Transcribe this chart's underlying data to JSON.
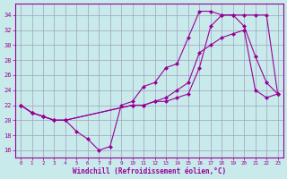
{
  "xlabel": "Windchill (Refroidissement éolien,°C)",
  "bg_color": "#c8eaea",
  "grid_color": "#a0a0c0",
  "line_color": "#990099",
  "x_ticks": [
    0,
    1,
    2,
    3,
    4,
    5,
    6,
    7,
    8,
    9,
    10,
    11,
    12,
    13,
    14,
    15,
    16,
    17,
    18,
    19,
    20,
    21,
    22,
    23
  ],
  "y_ticks": [
    16,
    18,
    20,
    22,
    24,
    26,
    28,
    30,
    32,
    34
  ],
  "ylim": [
    15,
    35.5
  ],
  "xlim": [
    -0.5,
    23.5
  ],
  "curve1_x": [
    0,
    1,
    2,
    3,
    4,
    5,
    6,
    7,
    8,
    9,
    10,
    11,
    12,
    13,
    14,
    15,
    16,
    17,
    18,
    19,
    20,
    21,
    22,
    23
  ],
  "curve1_y": [
    22,
    21,
    20.5,
    20,
    20,
    18.5,
    17.5,
    16,
    16.5,
    22,
    22.5,
    24.5,
    25,
    27,
    27.5,
    31,
    34.5,
    34.5,
    34,
    34,
    32.5,
    28.5,
    25,
    23.5
  ],
  "curve2_x": [
    0,
    1,
    2,
    3,
    4,
    10,
    11,
    12,
    13,
    14,
    15,
    16,
    17,
    18,
    19,
    20,
    21,
    22,
    23
  ],
  "curve2_y": [
    22,
    21,
    20.5,
    20,
    20,
    22,
    22,
    22.5,
    22.5,
    23,
    23.5,
    27,
    32.5,
    34,
    34,
    34,
    34,
    34,
    23.5
  ],
  "curve3_x": [
    0,
    1,
    2,
    3,
    4,
    10,
    11,
    12,
    13,
    14,
    15,
    16,
    17,
    18,
    19,
    20,
    21,
    22,
    23
  ],
  "curve3_y": [
    22,
    21,
    20.5,
    20,
    20,
    22,
    22,
    22.5,
    23,
    24,
    25,
    29,
    30,
    31,
    31.5,
    32,
    24,
    23,
    23.5
  ]
}
